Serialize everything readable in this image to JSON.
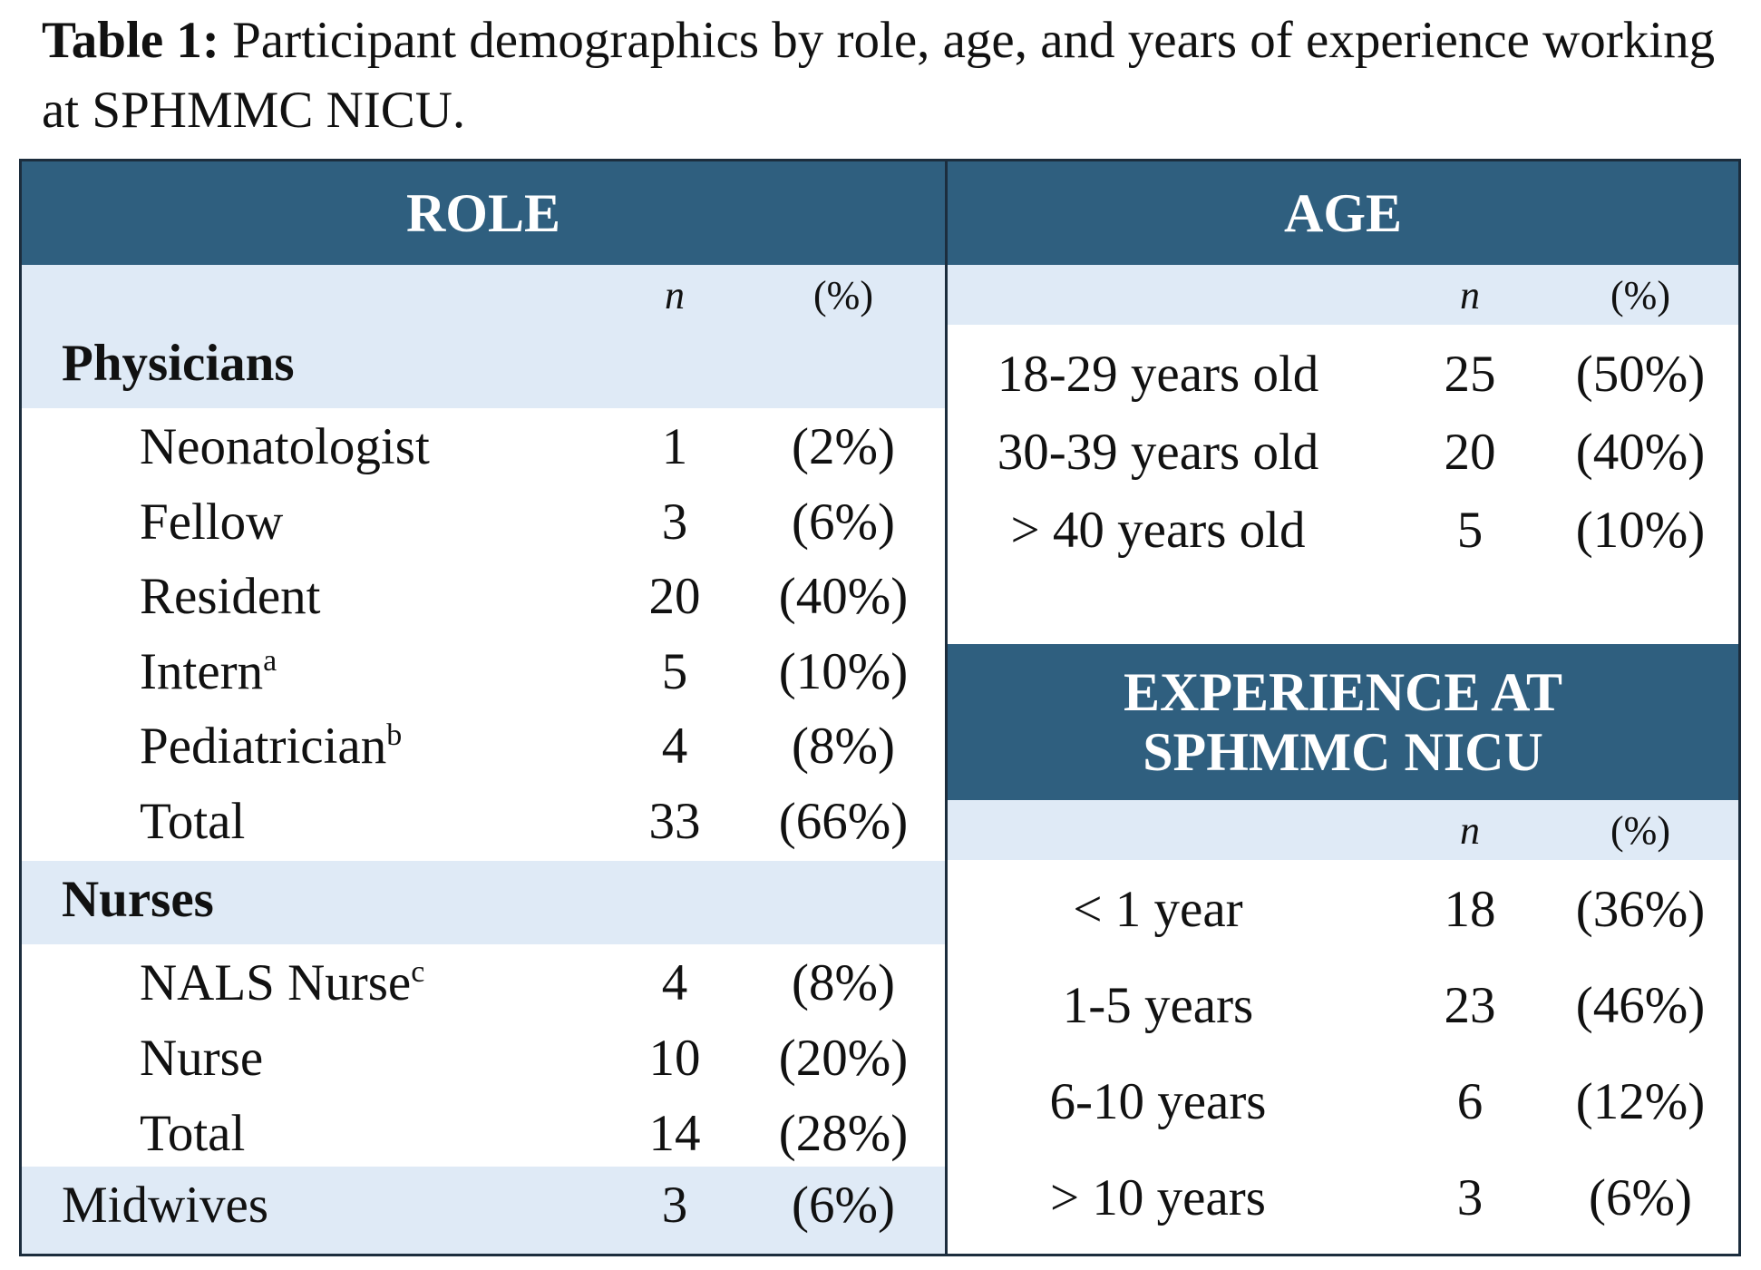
{
  "caption": {
    "label": "Table 1:",
    "text": " Participant demographics by role, age, and years of experience working at SPHMMC NICU."
  },
  "role": {
    "header": "ROLE",
    "col_n": "n",
    "col_pct": "(%)",
    "groups": [
      {
        "name": "Physicians",
        "rows": [
          {
            "label": "Neonatologist",
            "sup": "",
            "n": "1",
            "pct": "(2%)"
          },
          {
            "label": "Fellow",
            "sup": "",
            "n": "3",
            "pct": "(6%)"
          },
          {
            "label": "Resident",
            "sup": "",
            "n": "20",
            "pct": "(40%)"
          },
          {
            "label": "Intern",
            "sup": "a",
            "n": "5",
            "pct": "(10%)"
          },
          {
            "label": "Pediatrician",
            "sup": "b",
            "n": "4",
            "pct": "(8%)"
          },
          {
            "label": "Total",
            "sup": "",
            "n": "33",
            "pct": "(66%)"
          }
        ]
      },
      {
        "name": "Nurses",
        "rows": [
          {
            "label": "NALS Nurse",
            "sup": "c",
            "n": "4",
            "pct": "(8%)"
          },
          {
            "label": "Nurse",
            "sup": "",
            "n": "10",
            "pct": "(20%)"
          },
          {
            "label": "Total",
            "sup": "",
            "n": "14",
            "pct": "(28%)"
          }
        ]
      }
    ],
    "midwives": {
      "label": "Midwives",
      "n": "3",
      "pct": "(6%)"
    }
  },
  "age": {
    "header": "AGE",
    "col_n": "n",
    "col_pct": "(%)",
    "rows": [
      {
        "label": "18-29 years old",
        "n": "25",
        "pct": "(50%)"
      },
      {
        "label": "30-39 years old",
        "n": "20",
        "pct": "(40%)"
      },
      {
        "label": "> 40 years old",
        "n": "5",
        "pct": "(10%)"
      }
    ]
  },
  "experience": {
    "header_line1": "EXPERIENCE AT",
    "header_line2": "SPHMMC NICU",
    "col_n": "n",
    "col_pct": "(%)",
    "rows": [
      {
        "label": "< 1 year",
        "n": "18",
        "pct": "(36%)"
      },
      {
        "label": "1-5 years",
        "n": "23",
        "pct": "(46%)"
      },
      {
        "label": "6-10 years",
        "n": "6",
        "pct": "(12%)"
      },
      {
        "label": "> 10 years",
        "n": "3",
        "pct": "(6%)"
      }
    ]
  },
  "colors": {
    "header_bg": "#2f5f7f",
    "band_bg": "#dfeaf6",
    "border": "#1c2d3d"
  }
}
